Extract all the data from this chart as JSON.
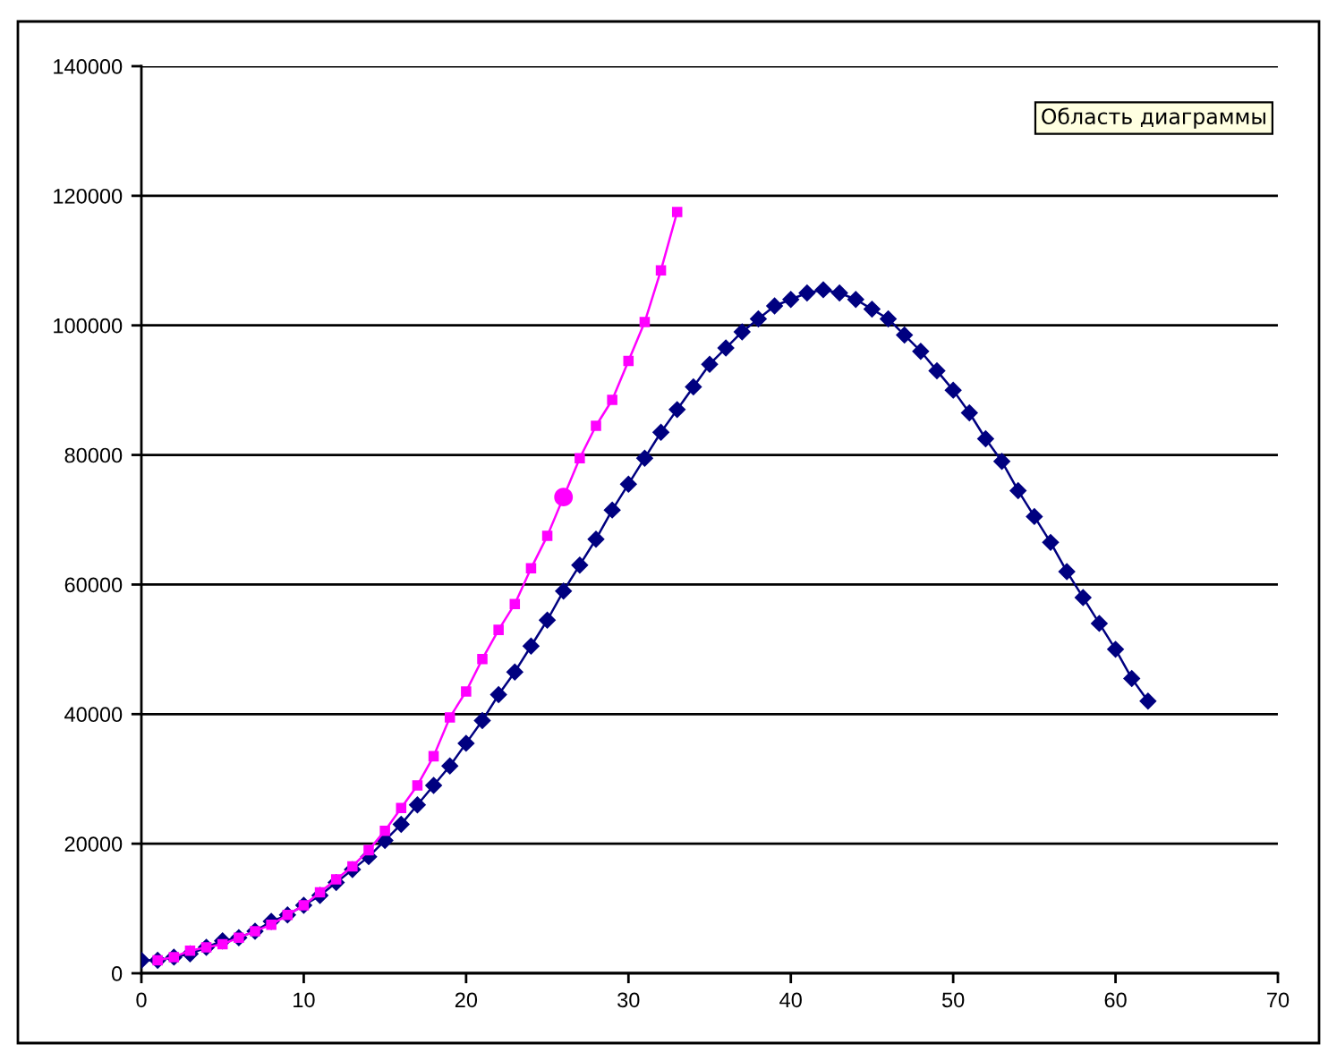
{
  "chart_data": {
    "type": "line",
    "x": [
      0,
      1,
      2,
      3,
      4,
      5,
      6,
      7,
      8,
      9,
      10,
      11,
      12,
      13,
      14,
      15,
      16,
      17,
      18,
      19,
      20,
      21,
      22,
      23,
      24,
      25,
      26,
      27,
      28,
      29,
      30,
      31,
      32,
      33,
      34,
      35,
      36,
      37,
      38,
      39,
      40,
      41,
      42,
      43,
      44,
      45,
      46,
      47,
      48,
      49,
      50,
      51,
      52,
      53,
      54,
      55,
      56,
      57,
      58,
      59,
      60,
      61,
      62
    ],
    "series": [
      {
        "color": "#000080",
        "marker": "diamond",
        "values": [
          2000,
          2000,
          2500,
          3000,
          4000,
          5000,
          5500,
          6500,
          8000,
          9000,
          10500,
          12000,
          14000,
          16000,
          18000,
          20500,
          23000,
          26000,
          29000,
          32000,
          35500,
          39000,
          43000,
          46500,
          50500,
          54500,
          59000,
          63000,
          67000,
          71500,
          75500,
          79500,
          83500,
          87000,
          90500,
          94000,
          96500,
          99000,
          101000,
          103000,
          104000,
          105000,
          105500,
          105000,
          104000,
          102500,
          101000,
          98500,
          96000,
          93000,
          90000,
          86500,
          82500,
          79000,
          74500,
          70500,
          66500,
          62000,
          58000,
          54000,
          50000,
          45500,
          42000
        ]
      },
      {
        "color": "#ff00ff",
        "marker": "square",
        "x": [
          1,
          2,
          3,
          4,
          5,
          6,
          7,
          8,
          9,
          10,
          11,
          12,
          13,
          14,
          15,
          16,
          17,
          18,
          19,
          20,
          21,
          22,
          23,
          24,
          25,
          26,
          27,
          28,
          29,
          30,
          31,
          32,
          33
        ],
        "values": [
          2000,
          2500,
          3500,
          4000,
          4500,
          5500,
          6500,
          7500,
          9000,
          10500,
          12500,
          14500,
          16500,
          19000,
          22000,
          25500,
          29000,
          33500,
          39500,
          43500,
          48500,
          53000,
          57000,
          62500,
          67500,
          null,
          79500,
          84500,
          88500,
          94500,
          100500,
          108500,
          117500
        ]
      },
      {
        "type": "scatter",
        "color": "#ff00ff",
        "marker": "circle",
        "x": [
          26
        ],
        "values": [
          73500
        ]
      }
    ],
    "xlim": [
      0,
      70
    ],
    "xticks": [
      0,
      10,
      20,
      30,
      40,
      50,
      60,
      70
    ],
    "ylim": [
      0,
      140000
    ],
    "yticks": [
      0,
      20000,
      40000,
      60000,
      80000,
      100000,
      120000,
      140000
    ],
    "grid": "y",
    "line_style": "solid",
    "annotations": [
      "Область диаграммы"
    ]
  }
}
